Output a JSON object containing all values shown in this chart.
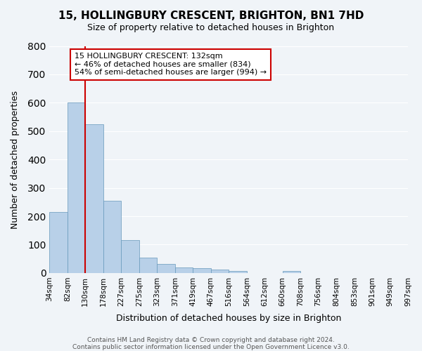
{
  "title": "15, HOLLINGBURY CRESCENT, BRIGHTON, BN1 7HD",
  "subtitle": "Size of property relative to detached houses in Brighton",
  "xlabel": "Distribution of detached houses by size in Brighton",
  "ylabel": "Number of detached properties",
  "bar_values": [
    215,
    600,
    525,
    255,
    117,
    55,
    33,
    20,
    17,
    12,
    8,
    0,
    0,
    8,
    0,
    0,
    0,
    0,
    0
  ],
  "bin_edges": [
    34,
    82,
    130,
    178,
    227,
    275,
    323,
    371,
    419,
    467,
    516,
    564,
    612,
    660,
    708,
    756,
    804,
    853,
    901,
    997
  ],
  "tick_labels": [
    "34sqm",
    "82sqm",
    "130sqm",
    "178sqm",
    "227sqm",
    "275sqm",
    "323sqm",
    "371sqm",
    "419sqm",
    "467sqm",
    "516sqm",
    "564sqm",
    "612sqm",
    "660sqm",
    "708sqm",
    "756sqm",
    "804sqm",
    "853sqm",
    "901sqm",
    "949sqm",
    "997sqm"
  ],
  "bar_color": "#b8d0e8",
  "bar_edge_color": "#6699bb",
  "vline_x": 130,
  "vline_color": "#cc0000",
  "ylim": [
    0,
    800
  ],
  "yticks": [
    0,
    100,
    200,
    300,
    400,
    500,
    600,
    700,
    800
  ],
  "annotation_title": "15 HOLLINGBURY CRESCENT: 132sqm",
  "annotation_line1": "← 46% of detached houses are smaller (834)",
  "annotation_line2": "54% of semi-detached houses are larger (994) →",
  "annotation_box_color": "#ffffff",
  "annotation_box_edge": "#cc0000",
  "footer1": "Contains HM Land Registry data © Crown copyright and database right 2024.",
  "footer2": "Contains public sector information licensed under the Open Government Licence v3.0.",
  "background_color": "#f0f4f8",
  "grid_color": "#ffffff"
}
